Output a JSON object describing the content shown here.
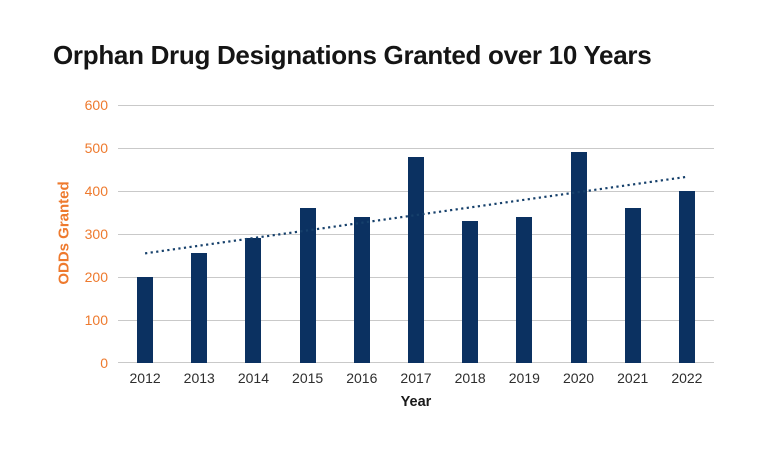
{
  "title": "Orphan Drug Designations Granted over 10 Years",
  "colors": {
    "bar": "#0b3161",
    "trendline": "#16406b",
    "y_axis_accent": "#ee7a2e",
    "gridline": "#c9c9c9",
    "x_tick": "#2e2e2e",
    "title_text": "#151515",
    "background": "#ffffff"
  },
  "chart_data": {
    "type": "bar",
    "title": "Orphan Drug Designations Granted over 10 Years",
    "categories": [
      "2012",
      "2013",
      "2014",
      "2015",
      "2016",
      "2017",
      "2018",
      "2019",
      "2020",
      "2021",
      "2022"
    ],
    "values": [
      200,
      255,
      290,
      360,
      340,
      480,
      330,
      340,
      490,
      360,
      400
    ],
    "xlabel": "Year",
    "ylabel": "ODDs Granted",
    "ylim": [
      0,
      600
    ],
    "yticks": [
      0,
      100,
      200,
      300,
      400,
      500,
      600
    ],
    "grid": "horizontal",
    "legend": "none",
    "trendline": {
      "style": "dotted",
      "start_value": 255,
      "end_value": 433
    }
  }
}
